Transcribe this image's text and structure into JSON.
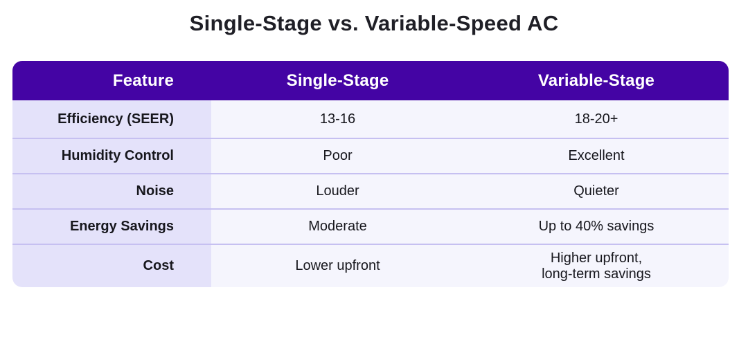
{
  "title": "Single-Stage vs. Variable-Speed AC",
  "table": {
    "headers": [
      "Feature",
      "Single-Stage",
      "Variable-Stage"
    ],
    "rows": [
      {
        "feature": "Efficiency (SEER)",
        "single": "13-16",
        "variable": "18-20+"
      },
      {
        "feature": "Humidity Control",
        "single": "Poor",
        "variable": "Excellent"
      },
      {
        "feature": "Noise",
        "single": "Louder",
        "variable": "Quieter"
      },
      {
        "feature": "Energy Savings",
        "single": "Moderate",
        "variable": "Up to 40% savings"
      },
      {
        "feature": "Cost",
        "single": "Lower upfront",
        "variable": "Higher upfront,\nlong-term savings"
      }
    ]
  },
  "colors": {
    "header_bg": "#4404A4",
    "header_text": "#FFFFFF",
    "feature_bg": "#E4E2FA",
    "cell_bg": "#F5F5FD",
    "divider": "#C6C0F1",
    "title_color": "#1F1F26",
    "text": "#17171D",
    "page_bg": "#FFFFFF"
  },
  "chart_data": {
    "type": "table",
    "title": "Single-Stage vs. Variable-Speed AC",
    "columns": [
      "Feature",
      "Single-Stage",
      "Variable-Stage"
    ],
    "rows": [
      [
        "Efficiency (SEER)",
        "13-16",
        "18-20+"
      ],
      [
        "Humidity Control",
        "Poor",
        "Excellent"
      ],
      [
        "Noise",
        "Louder",
        "Quieter"
      ],
      [
        "Energy Savings",
        "Moderate",
        "Up to 40% savings"
      ],
      [
        "Cost",
        "Lower upfront",
        "Higher upfront, long-term savings"
      ]
    ]
  }
}
